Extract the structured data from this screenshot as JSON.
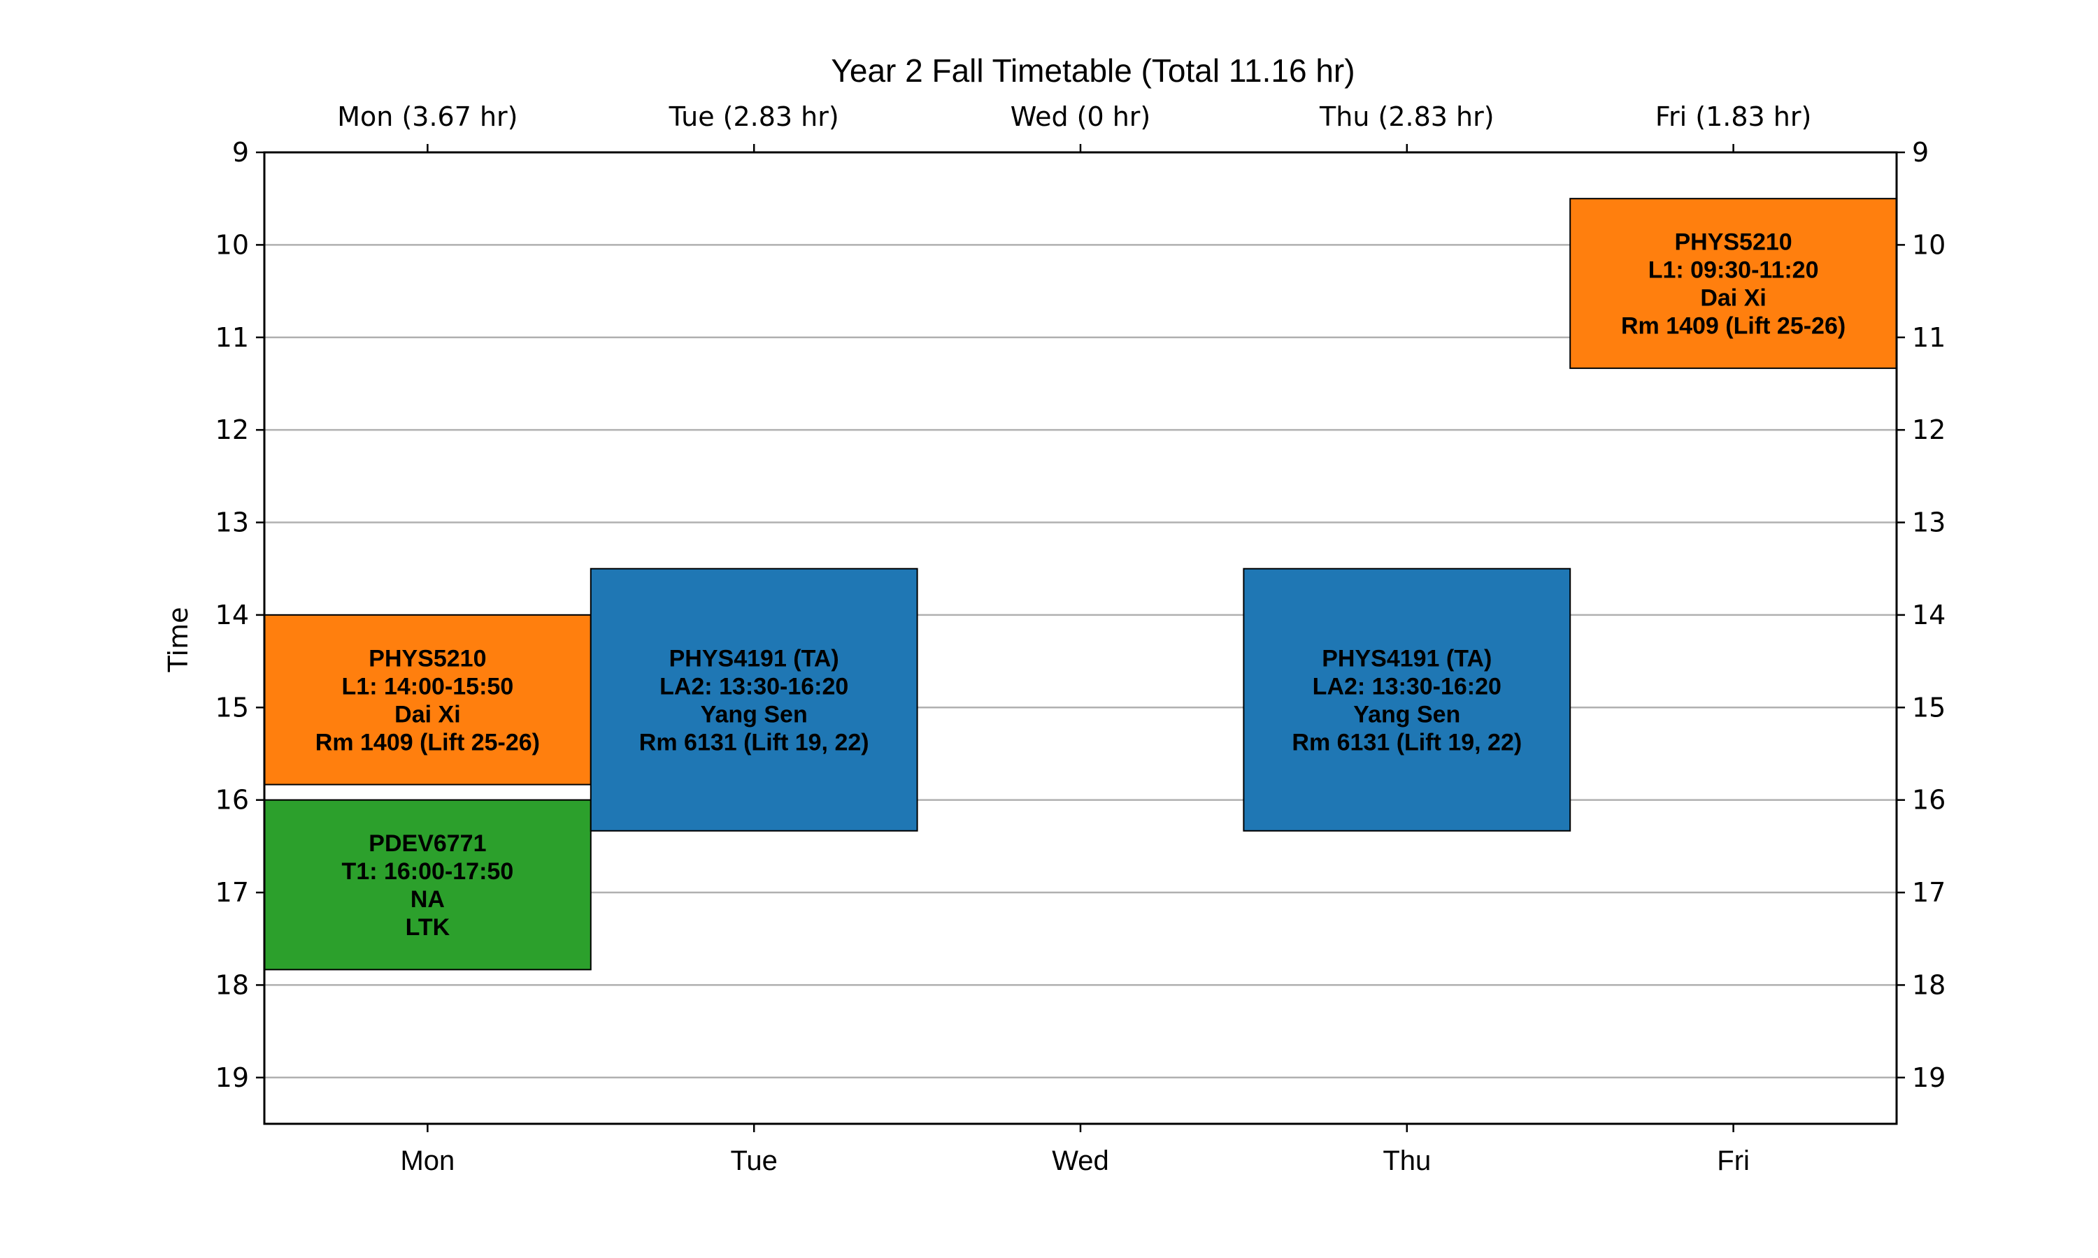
{
  "chart_data": {
    "type": "bar",
    "title": "Year 2 Fall Timetable (Total 11.16 hr)",
    "ylabel": "Time",
    "ylim": [
      19.5,
      9
    ],
    "yticks": [
      "9",
      "10",
      "11",
      "12",
      "13",
      "14",
      "15",
      "16",
      "17",
      "18",
      "19"
    ],
    "grid": "horizontal",
    "categories": [
      "Mon",
      "Tue",
      "Wed",
      "Thu",
      "Fri"
    ],
    "top_labels": [
      "Mon (3.67 hr)",
      "Tue (2.83 hr)",
      "Wed (0 hr)",
      "Thu (2.83 hr)",
      "Fri (1.83 hr)"
    ],
    "events": [
      {
        "day": "Mon",
        "start": 14.0,
        "end": 15.8333,
        "color": "#ff7f0e",
        "lines": [
          "PHYS5210",
          "L1: 14:00-15:50",
          "Dai Xi",
          "Rm 1409 (Lift 25-26)"
        ]
      },
      {
        "day": "Mon",
        "start": 16.0,
        "end": 17.8333,
        "color": "#2ca02c",
        "lines": [
          "PDEV6771",
          "T1: 16:00-17:50",
          "NA",
          "LTK"
        ]
      },
      {
        "day": "Tue",
        "start": 13.5,
        "end": 16.3333,
        "color": "#1f77b4",
        "lines": [
          "PHYS4191 (TA)",
          "LA2: 13:30-16:20",
          "Yang Sen",
          "Rm 6131 (Lift 19, 22)"
        ]
      },
      {
        "day": "Thu",
        "start": 13.5,
        "end": 16.3333,
        "color": "#1f77b4",
        "lines": [
          "PHYS4191 (TA)",
          "LA2: 13:30-16:20",
          "Yang Sen",
          "Rm 6131 (Lift 19, 22)"
        ]
      },
      {
        "day": "Fri",
        "start": 9.5,
        "end": 11.3333,
        "color": "#ff7f0e",
        "lines": [
          "PHYS5210",
          "L1: 09:30-11:20",
          "Dai Xi",
          "Rm 1409 (Lift 25-26)"
        ]
      }
    ]
  }
}
